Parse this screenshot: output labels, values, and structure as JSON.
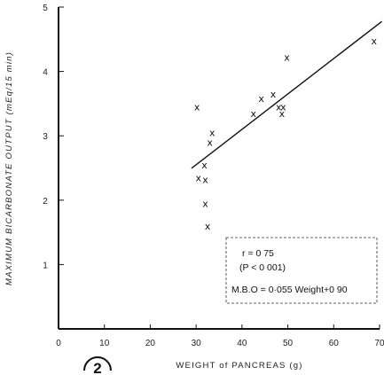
{
  "figure_number": "2",
  "chart_data": {
    "type": "scatter",
    "xlabel": "WEIGHT of PANCREAS (g)",
    "ylabel": "MAXIMUM BICARBONATE OUTPUT (mEq/15 min)",
    "xlim": [
      0,
      70
    ],
    "ylim": [
      0,
      5
    ],
    "xticks": [
      "0",
      "10",
      "20",
      "30",
      "40",
      "50",
      "60",
      "70"
    ],
    "yticks": [
      "1",
      "2",
      "3",
      "4",
      "5"
    ],
    "marker": "x",
    "points": [
      {
        "x": 30.2,
        "y": 3.45
      },
      {
        "x": 30.5,
        "y": 2.35
      },
      {
        "x": 31.8,
        "y": 2.55
      },
      {
        "x": 32.0,
        "y": 2.32
      },
      {
        "x": 32.0,
        "y": 1.95
      },
      {
        "x": 32.5,
        "y": 1.6
      },
      {
        "x": 33.0,
        "y": 2.9
      },
      {
        "x": 33.5,
        "y": 3.05
      },
      {
        "x": 42.5,
        "y": 3.35
      },
      {
        "x": 44.2,
        "y": 3.58
      },
      {
        "x": 46.8,
        "y": 3.65
      },
      {
        "x": 48.0,
        "y": 3.45
      },
      {
        "x": 48.7,
        "y": 3.35
      },
      {
        "x": 49.0,
        "y": 3.45
      },
      {
        "x": 49.8,
        "y": 4.22
      },
      {
        "x": 68.8,
        "y": 4.48
      }
    ],
    "regression_line": {
      "x_start": 29,
      "x_end": 70.5,
      "slope": 0.055,
      "intercept": 0.9
    },
    "annotation": {
      "r": "r  =  0 75",
      "p": "(P < 0 001)",
      "equation": "M.B.O = 0·055  Weight+0 90"
    }
  }
}
